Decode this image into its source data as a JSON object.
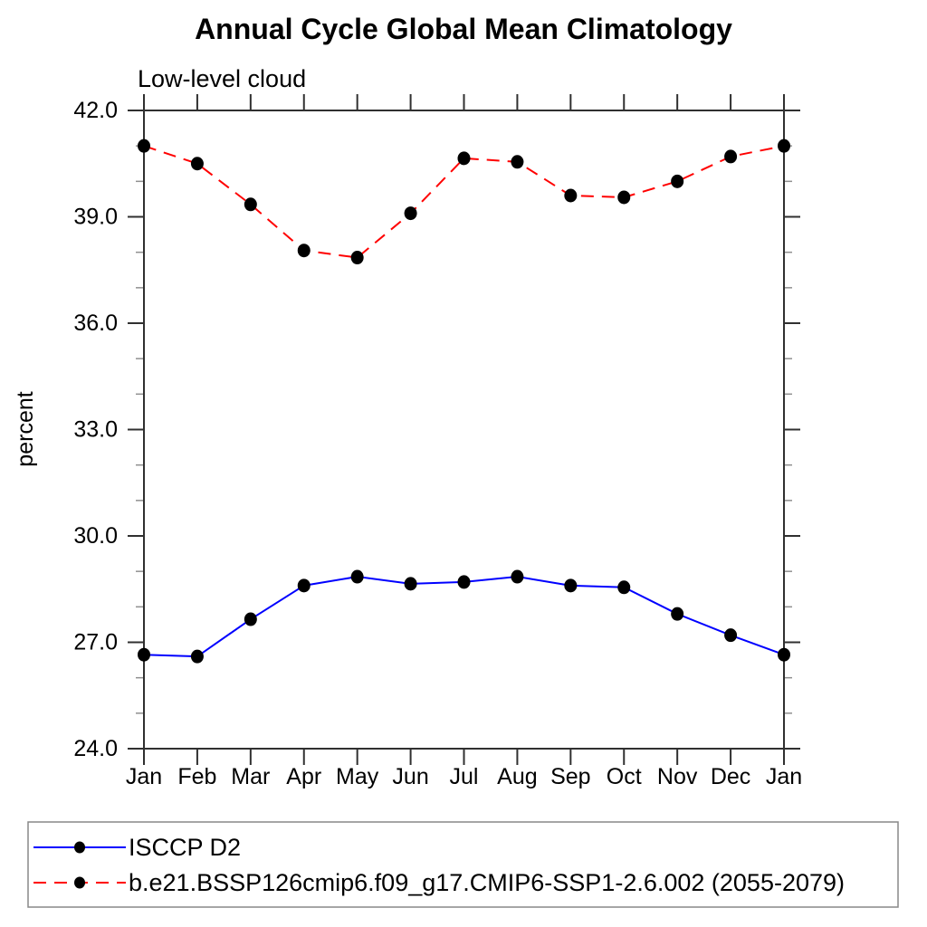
{
  "page": {
    "title": "Annual Cycle Global Mean Climatology",
    "subtitle": "Low-level cloud"
  },
  "chart_data": {
    "type": "line",
    "title": "Annual Cycle Global Mean Climatology",
    "subtitle": "Low-level cloud",
    "xlabel": "",
    "ylabel": "percent",
    "x_categories": [
      "Jan",
      "Feb",
      "Mar",
      "Apr",
      "May",
      "Jun",
      "Jul",
      "Aug",
      "Sep",
      "Oct",
      "Nov",
      "Dec",
      "Jan"
    ],
    "ylim": [
      24.0,
      42.0
    ],
    "y_major_ticks": [
      24.0,
      27.0,
      30.0,
      33.0,
      36.0,
      39.0,
      42.0
    ],
    "y_major_tick_labels": [
      "24.0",
      "27.0",
      "30.0",
      "33.0",
      "36.0",
      "39.0",
      "42.0"
    ],
    "y_minor_tick_step": 1.0,
    "grid": false,
    "legend_position": "bottom-outside",
    "series": [
      {
        "name": "ISCCP D2",
        "color": "#0000ff",
        "line_style": "solid",
        "marker": "filled-circle",
        "marker_color": "#000000",
        "values": [
          26.65,
          26.6,
          27.65,
          28.6,
          28.85,
          28.65,
          28.7,
          28.85,
          28.6,
          28.55,
          27.8,
          27.2,
          26.65
        ]
      },
      {
        "name": "b.e21.BSSP126cmip6.f09_g17.CMIP6-SSP1-2.6.002 (2055-2079)",
        "color": "#ff0000",
        "line_style": "dashed",
        "marker": "filled-circle",
        "marker_color": "#000000",
        "values": [
          41.0,
          40.5,
          39.35,
          38.05,
          37.85,
          39.1,
          40.65,
          40.55,
          39.6,
          39.55,
          40.0,
          40.7,
          41.0
        ]
      }
    ]
  },
  "style": {
    "axis_color": "#303030",
    "minor_tick_color": "#909090",
    "text_color": "#000000",
    "legend_border_color": "#888888"
  }
}
